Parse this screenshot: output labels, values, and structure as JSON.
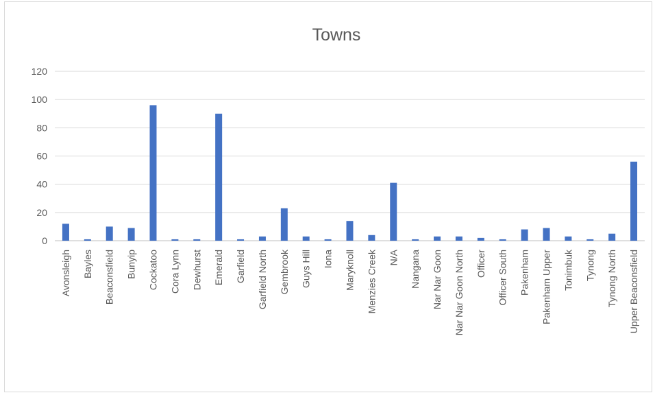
{
  "chart_data": {
    "type": "bar",
    "title": "Towns",
    "xlabel": "",
    "ylabel": "",
    "ylim": [
      0,
      120
    ],
    "yticks": [
      "0",
      "20",
      "40",
      "60",
      "80",
      "100",
      "120"
    ],
    "grid": true,
    "legend": "none",
    "bar_color": "#4472c4",
    "categories": [
      "Avonsleigh",
      "Bayles",
      "Beaconsfield",
      "Bunyip",
      "Cockatoo",
      "Cora Lynn",
      "Dewhurst",
      "Emerald",
      "Garfield",
      "Garfield North",
      "Gembrook",
      "Guys Hill",
      "Iona",
      "Maryknoll",
      "Menzies Creek",
      "N/A",
      "Nangana",
      "Nar Nar Goon",
      "Nar Nar Goon North",
      "Officer",
      "Officer South",
      "Pakenham",
      "Pakenham Upper",
      "Tonimbuk",
      "Tynong",
      "Tynong North",
      "Upper Beaconsfield"
    ],
    "values": [
      12,
      1,
      10,
      9,
      96,
      1,
      1,
      90,
      1,
      3,
      23,
      3,
      1,
      14,
      4,
      41,
      1,
      3,
      3,
      2,
      1,
      8,
      9,
      3,
      1,
      5,
      56
    ]
  }
}
